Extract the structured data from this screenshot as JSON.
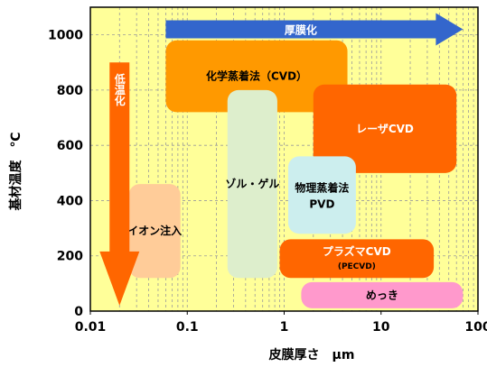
{
  "chart_data": {
    "type": "area",
    "title": "",
    "xlabel": "皮膜厚さ　μm",
    "ylabel": "基材温度　℃",
    "x_scale": "log",
    "xlim": [
      0.01,
      100
    ],
    "ylim": [
      0,
      1100
    ],
    "x_ticks": [
      {
        "value": 0.01,
        "label": "0.01"
      },
      {
        "value": 0.1,
        "label": "0.1"
      },
      {
        "value": 1,
        "label": "1"
      },
      {
        "value": 10,
        "label": "10"
      },
      {
        "value": 100,
        "label": "100"
      }
    ],
    "y_ticks": [
      {
        "value": 0,
        "label": "0"
      },
      {
        "value": 200,
        "label": "200"
      },
      {
        "value": 400,
        "label": "400"
      },
      {
        "value": 600,
        "label": "600"
      },
      {
        "value": 800,
        "label": "800"
      },
      {
        "value": 1000,
        "label": "1000"
      }
    ],
    "grid": true,
    "background_color": "#ffff99",
    "regions": [
      {
        "name": "cvd",
        "label": "化学蒸着法（CVD）",
        "sublabel": "",
        "x": [
          0.06,
          4.5
        ],
        "y": [
          720,
          980
        ],
        "color": "#ff9900",
        "text_color": "#000000"
      },
      {
        "name": "laser-cvd",
        "label": "レーザCVD",
        "sublabel": "",
        "x": [
          2.0,
          60
        ],
        "y": [
          500,
          820
        ],
        "color": "#ff6600",
        "text_color": "#ffffff"
      },
      {
        "name": "sol-gel",
        "label": "ゾル・ゲル",
        "sublabel": "",
        "x": [
          0.26,
          0.85
        ],
        "y": [
          120,
          800
        ],
        "color": "#ddeecc",
        "text_color": "#000000"
      },
      {
        "name": "pvd",
        "label": "物理蒸着法",
        "sublabel": "PVD",
        "x": [
          1.1,
          5.5
        ],
        "y": [
          280,
          560
        ],
        "color": "#cceeee",
        "text_color": "#000000"
      },
      {
        "name": "ion-implant",
        "label": "イオン注入",
        "sublabel": "",
        "x": [
          0.025,
          0.085
        ],
        "y": [
          120,
          460
        ],
        "color": "#ffcc99",
        "text_color": "#000000"
      },
      {
        "name": "plasma-cvd",
        "label": "プラズマCVD",
        "sublabel": "(PECVD)",
        "x": [
          0.9,
          35
        ],
        "y": [
          120,
          260
        ],
        "color": "#ff6600",
        "text_color": "#ffffff"
      },
      {
        "name": "plating",
        "label": "めっき",
        "sublabel": "",
        "x": [
          1.5,
          70
        ],
        "y": [
          10,
          105
        ],
        "color": "#ff99cc",
        "text_color": "#000000"
      }
    ],
    "arrows": [
      {
        "name": "thick-film-arrow",
        "label": "厚膜化",
        "direction": "right",
        "x": [
          0.06,
          70
        ],
        "y": 1020,
        "color": "#3366cc"
      },
      {
        "name": "low-temp-arrow",
        "label": "低温化",
        "direction": "down",
        "x": 0.02,
        "y": [
          900,
          20
        ],
        "color": "#ff6600"
      }
    ]
  }
}
